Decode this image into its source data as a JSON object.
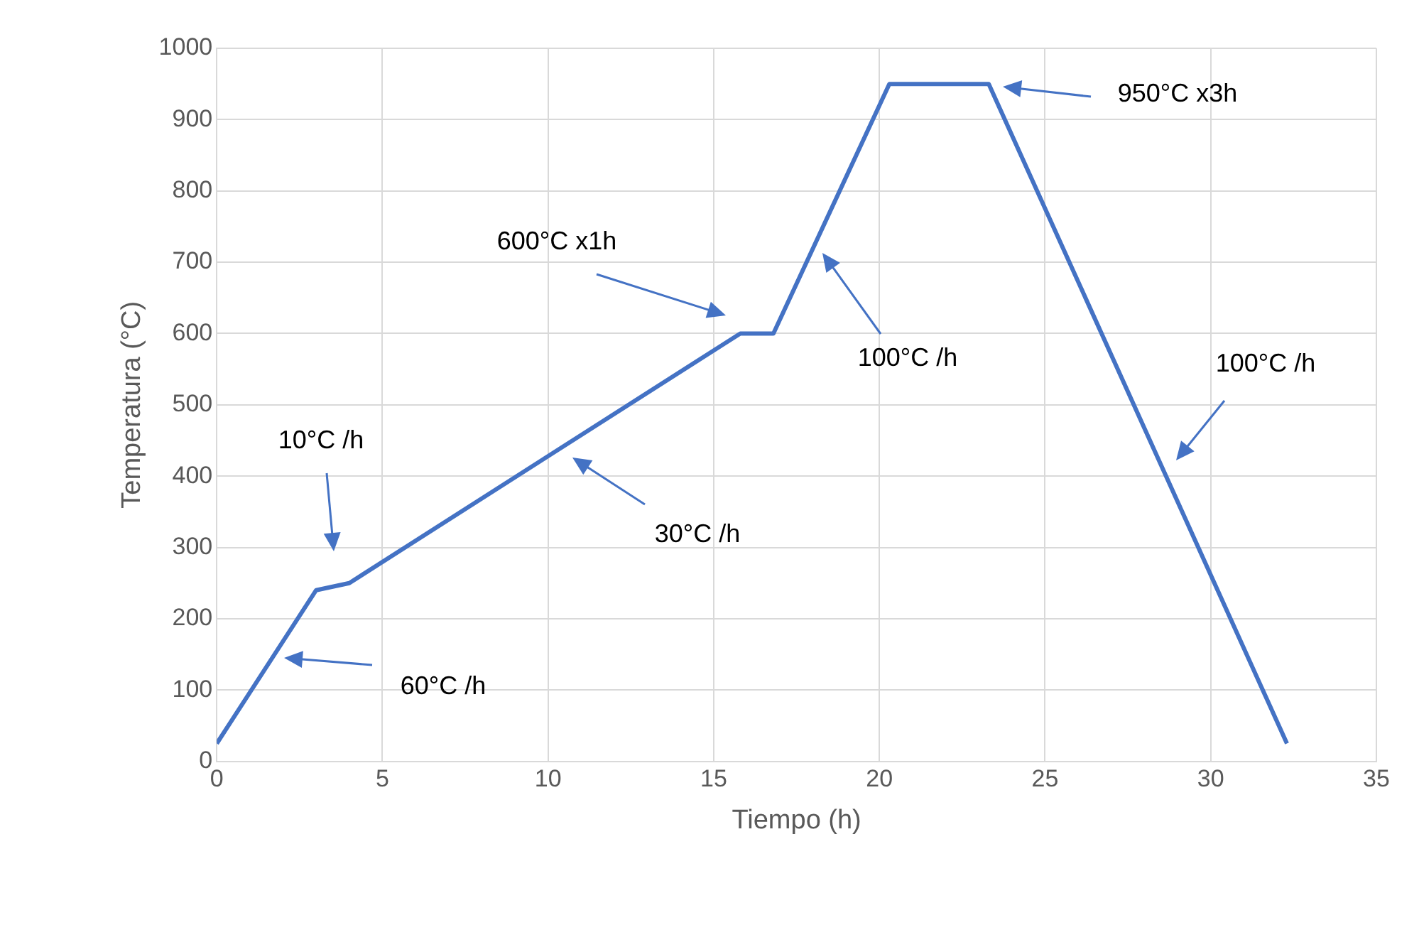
{
  "chart_data": {
    "type": "line",
    "xlabel": "Tiempo (h)",
    "ylabel": "Temperatura (°C)",
    "x": [
      0,
      3,
      4,
      15.8,
      16.8,
      20.3,
      23.3,
      32.3
    ],
    "series": [
      {
        "color": "#4472c4",
        "values": [
          25,
          240,
          250,
          600,
          600,
          950,
          950,
          25
        ]
      }
    ],
    "xlim": [
      0,
      35
    ],
    "xticks": [
      0,
      5,
      10,
      15,
      20,
      25,
      30,
      35
    ],
    "ylim": [
      0,
      1000
    ],
    "yticks": [
      0,
      100,
      200,
      300,
      400,
      500,
      600,
      700,
      800,
      900,
      1000
    ],
    "grid": true,
    "legend": false,
    "marker": "none",
    "line_style": "solid",
    "annotations": [
      "60°C /h",
      "10°C /h",
      "30°C /h",
      "600°C x1h",
      "100°C /h",
      "950°C x3h",
      "100°C /h"
    ]
  }
}
